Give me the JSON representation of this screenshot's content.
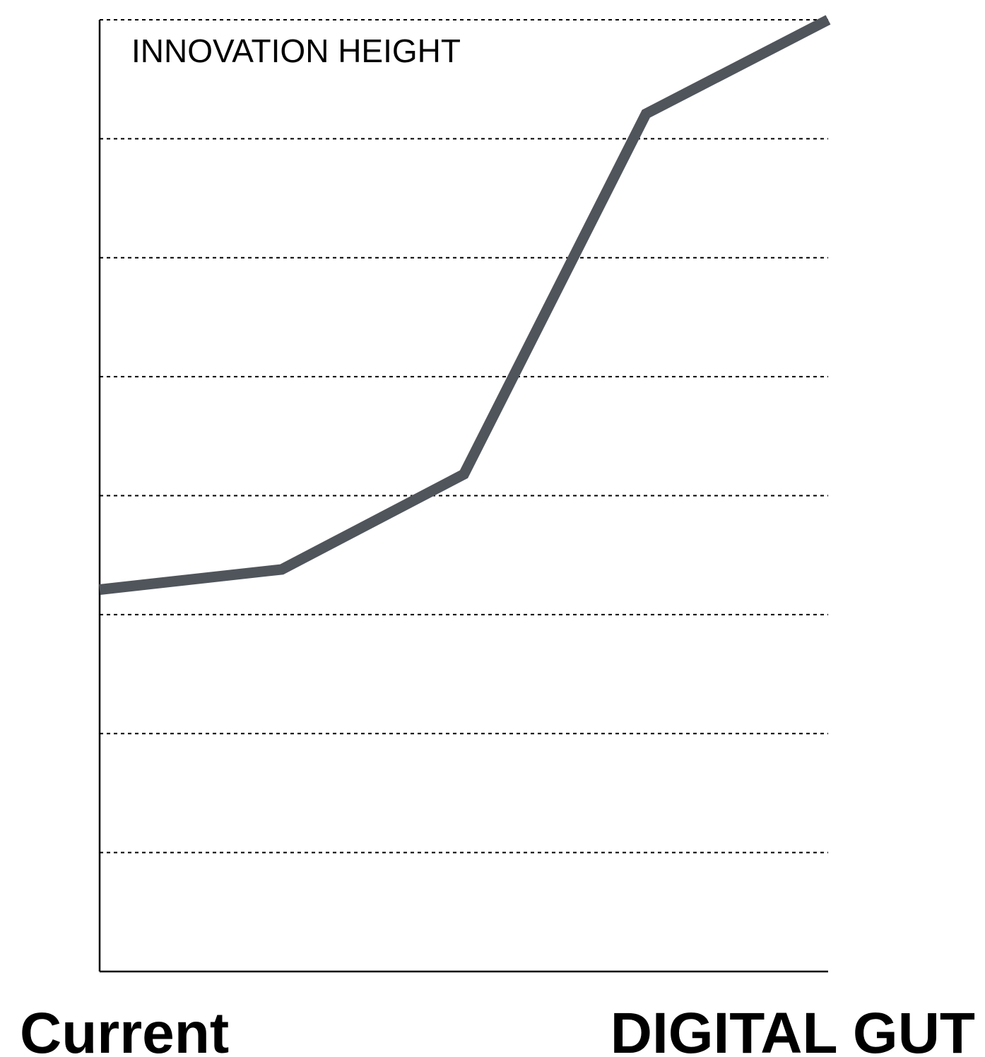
{
  "chart_data": {
    "type": "line",
    "title": "",
    "inner_label": "INNOVATION HEIGHT",
    "xlabel": "",
    "ylabel": "",
    "x_start_label": "Current",
    "x_end_label": "DIGITAL GUT",
    "x": [
      0,
      1,
      2,
      3,
      4
    ],
    "xlim": [
      0,
      4
    ],
    "ylim": [
      0,
      8
    ],
    "grid": true,
    "series": [
      {
        "values": [
          3.21,
          3.38,
          4.18,
          7.21,
          8.0
        ],
        "color": "#50555c"
      }
    ]
  }
}
